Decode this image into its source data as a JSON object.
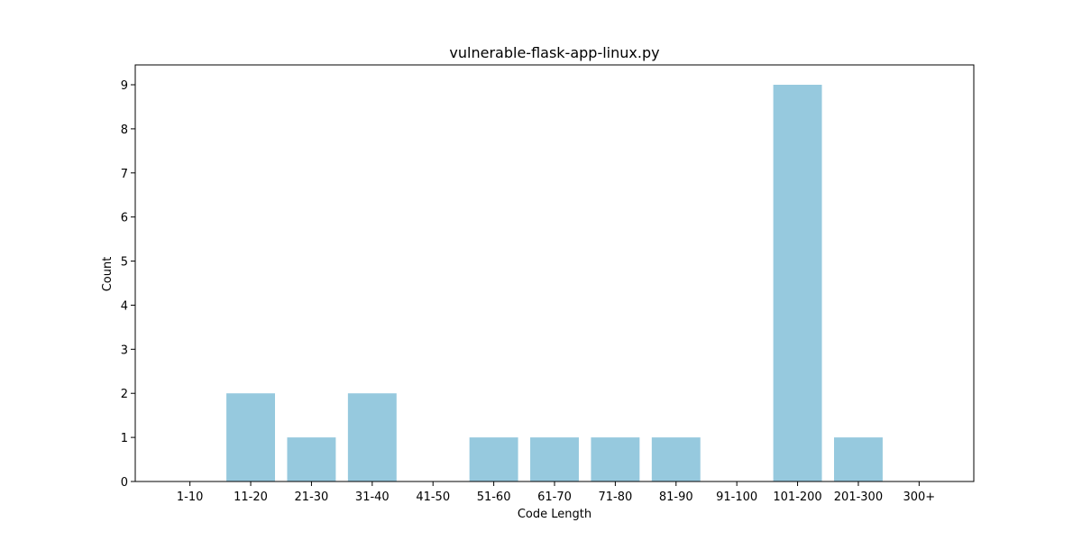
{
  "chart_data": {
    "type": "bar",
    "title": "vulnerable-flask-app-linux.py",
    "xlabel": "Code Length",
    "ylabel": "Count",
    "categories": [
      "1-10",
      "11-20",
      "21-30",
      "31-40",
      "41-50",
      "51-60",
      "61-70",
      "71-80",
      "81-90",
      "91-100",
      "101-200",
      "201-300",
      "300+"
    ],
    "values": [
      0,
      2,
      1,
      2,
      0,
      1,
      1,
      1,
      1,
      0,
      9,
      1,
      0
    ],
    "ylim": [
      0,
      9.45
    ],
    "yticks": [
      0,
      1,
      2,
      3,
      4,
      5,
      6,
      7,
      8,
      9
    ],
    "bar_color": "#96c9de",
    "grid": false,
    "legend": "none"
  }
}
